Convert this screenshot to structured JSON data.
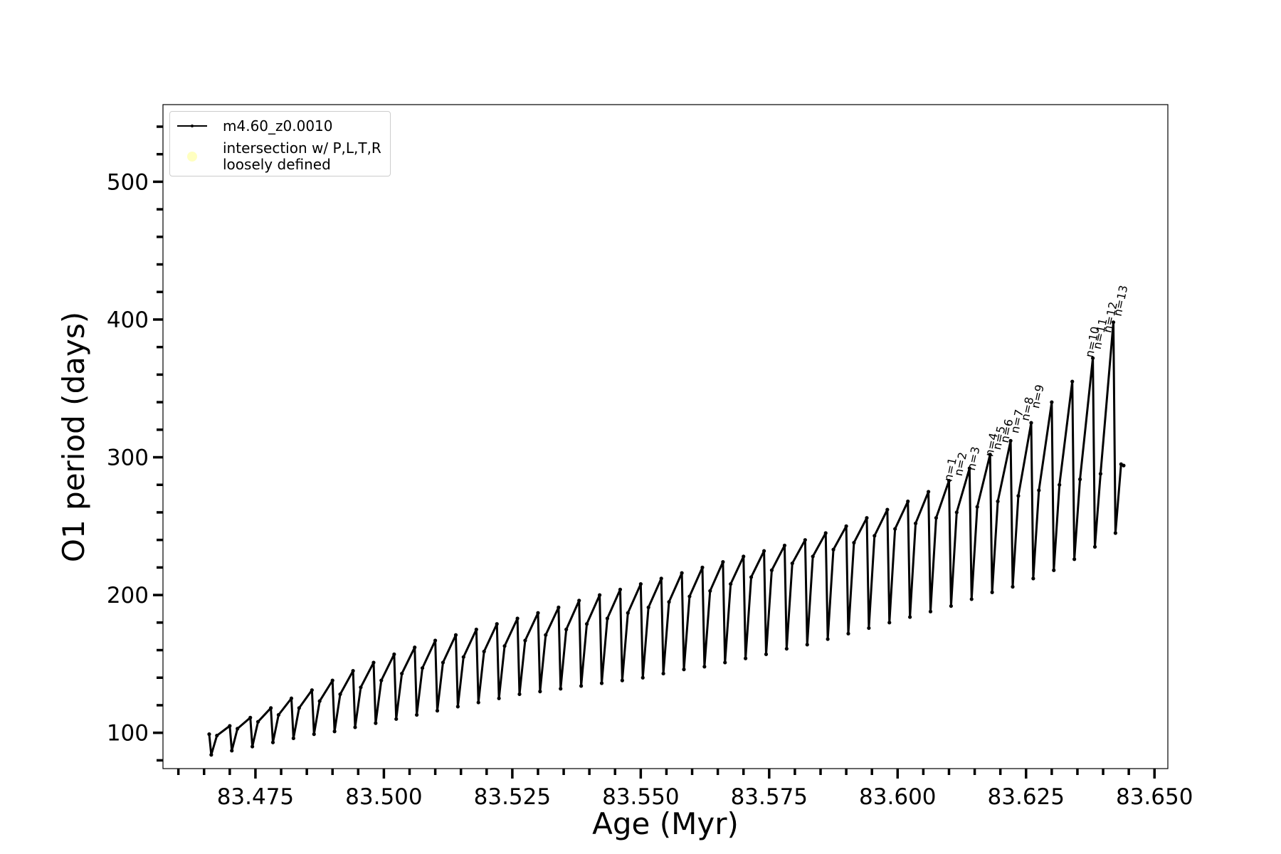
{
  "chart_data": {
    "type": "line",
    "xlabel": "Age (Myr)",
    "ylabel": "O1 period (days)",
    "xlim": [
      83.457,
      83.6526
    ],
    "ylim": [
      74,
      556
    ],
    "xticks": [
      83.475,
      {
        "value": 83.5,
        "label": "83.500"
      },
      83.525,
      {
        "value": 83.55,
        "label": "83.550"
      },
      83.575,
      {
        "value": 83.6,
        "label": "83.600"
      },
      83.625,
      {
        "value": 83.65,
        "label": "83.650"
      }
    ],
    "xminorticks": [
      83.46,
      83.465,
      83.47,
      83.48,
      83.485,
      83.49,
      83.495,
      83.505,
      83.51,
      83.515,
      83.52,
      83.53,
      83.535,
      83.54,
      83.545,
      83.555,
      83.56,
      83.565,
      83.57,
      83.58,
      83.585,
      83.59,
      83.595,
      83.605,
      83.61,
      83.615,
      83.62,
      83.63,
      83.635,
      83.64,
      83.645
    ],
    "yticks": [
      100,
      200,
      300,
      400,
      500
    ],
    "yminorticks": [
      80,
      120,
      140,
      160,
      180,
      220,
      240,
      260,
      280,
      320,
      340,
      360,
      380,
      420,
      440,
      460,
      480,
      520,
      540
    ],
    "legend": "upper left",
    "series": [
      {
        "name": "m4.60_z0.0010",
        "color": "#000000",
        "x": [
          83.466,
          83.4664,
          83.4675,
          83.47,
          83.4704,
          83.4715,
          83.474,
          83.4744,
          83.4755,
          83.478,
          83.4784,
          83.4795,
          83.482,
          83.4824,
          83.4835,
          83.486,
          83.4864,
          83.4875,
          83.49,
          83.4904,
          83.4915,
          83.494,
          83.4944,
          83.4955,
          83.498,
          83.4984,
          83.4995,
          83.502,
          83.5024,
          83.5035,
          83.506,
          83.5064,
          83.5075,
          83.51,
          83.5104,
          83.5115,
          83.514,
          83.5144,
          83.5155,
          83.518,
          83.5184,
          83.5195,
          83.522,
          83.5224,
          83.5235,
          83.526,
          83.5264,
          83.5275,
          83.53,
          83.5304,
          83.5315,
          83.534,
          83.5344,
          83.5355,
          83.538,
          83.5384,
          83.5395,
          83.542,
          83.5424,
          83.5435,
          83.546,
          83.5464,
          83.5475,
          83.55,
          83.5504,
          83.5515,
          83.554,
          83.5544,
          83.5555,
          83.558,
          83.5584,
          83.5595,
          83.562,
          83.5624,
          83.5635,
          83.566,
          83.5664,
          83.5675,
          83.57,
          83.5704,
          83.5715,
          83.574,
          83.5744,
          83.5755,
          83.578,
          83.5784,
          83.5795,
          83.582,
          83.5824,
          83.5835,
          83.586,
          83.5864,
          83.5875,
          83.59,
          83.5904,
          83.5915,
          83.594,
          83.5944,
          83.5955,
          83.598,
          83.5984,
          83.5995,
          83.602,
          83.6024,
          83.6035,
          83.606,
          83.6064,
          83.6075,
          83.61,
          83.6104,
          83.6115,
          83.614,
          83.6144,
          83.6155,
          83.618,
          83.6184,
          83.6195,
          83.622,
          83.6224,
          83.6235,
          83.626,
          83.6264,
          83.6275,
          83.63,
          83.6304,
          83.6315,
          83.634,
          83.6344,
          83.6355,
          83.638,
          83.6384,
          83.6395,
          83.642,
          83.6424,
          83.6435,
          83.644
        ],
        "values": [
          99,
          84,
          98,
          105,
          87,
          103,
          111,
          90,
          108,
          118,
          93,
          113,
          125,
          96,
          118,
          131,
          99,
          123,
          138,
          101,
          128,
          145,
          104,
          133,
          151,
          107,
          138,
          157,
          110,
          143,
          162,
          113,
          147,
          167,
          116,
          151,
          171,
          119,
          155,
          175,
          122,
          159,
          179,
          125,
          163,
          183,
          128,
          167,
          187,
          130,
          171,
          191,
          132,
          175,
          196,
          134,
          179,
          200,
          136,
          183,
          204,
          138,
          187,
          208,
          140,
          191,
          212,
          143,
          195,
          216,
          146,
          199,
          220,
          148,
          203,
          224,
          151,
          208,
          228,
          154,
          213,
          232,
          157,
          218,
          236,
          161,
          223,
          240,
          164,
          228,
          245,
          168,
          233,
          250,
          172,
          238,
          256,
          176,
          243,
          262,
          180,
          248,
          268,
          184,
          252,
          275,
          188,
          256,
          283,
          192,
          260,
          292,
          197,
          264,
          302,
          202,
          268,
          312,
          206,
          272,
          325,
          212,
          276,
          340,
          218,
          280,
          355,
          226,
          284,
          372,
          235,
          288,
          398,
          245,
          295,
          294
        ]
      },
      {
        "name": "intersection w/ P,L,T,R\nloosely defined",
        "color": "#ffffc0",
        "x": [],
        "values": []
      }
    ],
    "annotations": [
      {
        "text": "n=1",
        "x": 83.6105,
        "y": 282
      },
      {
        "text": "n=2",
        "x": 83.6125,
        "y": 286
      },
      {
        "text": "n=3",
        "x": 83.615,
        "y": 290
      },
      {
        "text": "n=4",
        "x": 83.6185,
        "y": 300
      },
      {
        "text": "n=5",
        "x": 83.62,
        "y": 305
      },
      {
        "text": "n=6",
        "x": 83.6215,
        "y": 310
      },
      {
        "text": "n=7",
        "x": 83.6235,
        "y": 317
      },
      {
        "text": "n=8",
        "x": 83.6255,
        "y": 326
      },
      {
        "text": "n=9",
        "x": 83.6275,
        "y": 335
      },
      {
        "text": "n=10",
        "x": 83.638,
        "y": 372
      },
      {
        "text": "n=11",
        "x": 83.6395,
        "y": 378
      },
      {
        "text": "n=12",
        "x": 83.6415,
        "y": 390
      },
      {
        "text": "n=13",
        "x": 83.6435,
        "y": 402
      }
    ]
  }
}
